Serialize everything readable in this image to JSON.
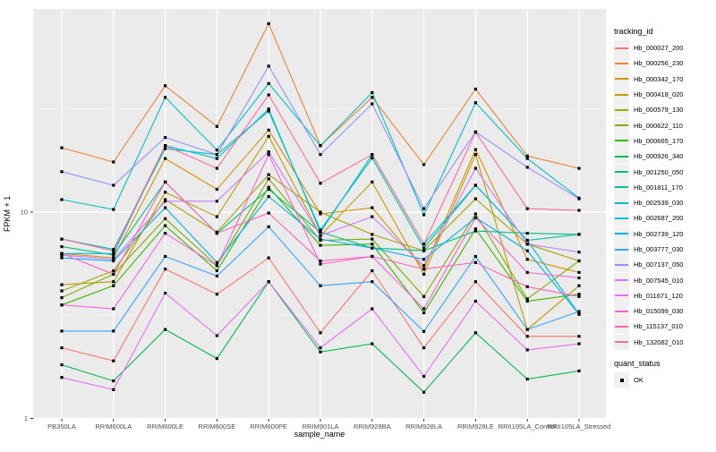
{
  "colors": {
    "panel_bg": "#EBEBEB",
    "grid": "#FFFFFF",
    "tick_text": "#4D4D4D",
    "tick_mark": "#333333",
    "point": "#000000"
  },
  "legend": {
    "tracking_title": "tracking_id",
    "quant_title": "quant_status",
    "quant_ok_label": "OK"
  },
  "chart_data": {
    "type": "line",
    "xlabel": "sample_name",
    "ylabel": "FPKM + 1",
    "y_scale": "log10",
    "ylim": [
      1,
      97
    ],
    "y_ticks": [
      1,
      10
    ],
    "y_tick_labels": [
      "1",
      "10"
    ],
    "y_minor_gridlines": [
      3.162,
      31.62
    ],
    "grid": true,
    "legend_position": "right",
    "point_shape": "square",
    "point_status_label": "OK",
    "categories": [
      "PB350LA",
      "RRIM600LA",
      "RRIM600LE",
      "RRIM600SE",
      "RRIM600PE",
      "RRIM901LA",
      "RRIM928BA",
      "RRIM928LA",
      "RRIM928LE",
      "RRII105LA_Control",
      "RRII105LA_Stressed"
    ],
    "series": [
      {
        "name": "Hb_000027_200",
        "color": "#F8766D",
        "values": [
          2.2,
          1.9,
          5.3,
          4.0,
          6.0,
          2.6,
          5.2,
          2.2,
          4.6,
          2.5,
          2.5
        ]
      },
      {
        "name": "Hb_000256_230",
        "color": "#EA8331",
        "values": [
          20.5,
          17.5,
          41,
          26,
          82,
          21,
          36,
          17,
          39.5,
          18.7,
          16.3
        ]
      },
      {
        "name": "Hb_000342_170",
        "color": "#D89000",
        "values": [
          6.3,
          6.0,
          18.2,
          12.9,
          25,
          9.8,
          10.5,
          5.3,
          20.1,
          5.9,
          5.1
        ]
      },
      {
        "name": "Hb_000418_020",
        "color": "#C09B00",
        "values": [
          4.45,
          4.6,
          12.5,
          9.5,
          23.3,
          7.7,
          14,
          5.0,
          19,
          2.7,
          4.4
        ]
      },
      {
        "name": "Hb_000579_130",
        "color": "#A3A500",
        "values": [
          4.15,
          5.2,
          11.5,
          8.0,
          15.2,
          10,
          7.8,
          6.5,
          11.6,
          7.0,
          5.8
        ]
      },
      {
        "name": "Hb_000622_110",
        "color": "#7CAE00",
        "values": [
          3.85,
          5.0,
          9.3,
          5.5,
          14.5,
          7.3,
          7.4,
          3.9,
          9.8,
          3.8,
          5.8
        ]
      },
      {
        "name": "Hb_000665_170",
        "color": "#39B600",
        "values": [
          3.55,
          4.4,
          8.6,
          5.2,
          13.2,
          6.9,
          7.0,
          3.25,
          8.3,
          3.7,
          4.0
        ]
      },
      {
        "name": "Hb_000926_340",
        "color": "#00BB4E",
        "values": [
          1.82,
          1.52,
          2.7,
          1.95,
          4.6,
          2.1,
          2.3,
          1.34,
          2.6,
          1.55,
          1.7
        ]
      },
      {
        "name": "Hb_001250_050",
        "color": "#00BF7D",
        "values": [
          6.8,
          6.2,
          14,
          7.9,
          12.9,
          8.0,
          6.7,
          6.5,
          8.1,
          7.9,
          7.8
        ]
      },
      {
        "name": "Hb_001811_170",
        "color": "#00C1A3",
        "values": [
          7.4,
          6.6,
          20.3,
          19.0,
          30.9,
          8.2,
          18.3,
          6.7,
          13.5,
          7.3,
          7.8
        ]
      },
      {
        "name": "Hb_002539_030",
        "color": "#00BFC4",
        "values": [
          11.5,
          10.3,
          36,
          20,
          42,
          21,
          38,
          9.7,
          33.9,
          18.2,
          11.7
        ]
      },
      {
        "name": "Hb_002687_200",
        "color": "#00BAE0",
        "values": [
          6.3,
          6.3,
          21,
          18.2,
          31.6,
          8.0,
          19.0,
          7.0,
          13.5,
          7.3,
          3.2
        ]
      },
      {
        "name": "Hb_002739_120",
        "color": "#00B0F6",
        "values": [
          6.0,
          5.8,
          10.5,
          5.7,
          11.9,
          7.4,
          6.7,
          5.9,
          9.4,
          6.5,
          3.2
        ]
      },
      {
        "name": "Hb_003777_030",
        "color": "#35A2FF",
        "values": [
          2.65,
          2.65,
          6.1,
          4.9,
          8.5,
          4.4,
          4.6,
          2.64,
          6.1,
          2.7,
          3.3
        ]
      },
      {
        "name": "Hb_007137_050",
        "color": "#9590FF",
        "values": [
          15.7,
          13.5,
          23,
          19,
          51,
          19,
          33.5,
          10.4,
          24.5,
          16.5,
          11.6
        ]
      },
      {
        "name": "Hb_007545_010",
        "color": "#C77CFF",
        "values": [
          6.2,
          5.9,
          11.3,
          11.3,
          19.6,
          7.7,
          9.5,
          5.5,
          16.3,
          7.0,
          6.4
        ]
      },
      {
        "name": "Hb_011671_120",
        "color": "#E76BF3",
        "values": [
          1.58,
          1.38,
          4.05,
          2.52,
          4.6,
          2.2,
          3.4,
          1.6,
          3.7,
          2.15,
          2.3
        ]
      },
      {
        "name": "Hb_015099_030",
        "color": "#FA62DB",
        "values": [
          3.55,
          3.4,
          7.9,
          5.5,
          19.0,
          5.6,
          6.1,
          3.4,
          9.4,
          5.1,
          4.8
        ]
      },
      {
        "name": "Hb_115137_010",
        "color": "#FF62BC",
        "values": [
          6.3,
          5.0,
          14.0,
          7.9,
          9.9,
          5.8,
          6.1,
          5.3,
          5.7,
          4.35,
          3.9
        ]
      },
      {
        "name": "Hb_132082_010",
        "color": "#FF6A98",
        "values": [
          7.4,
          6.5,
          21,
          16.3,
          37,
          13.8,
          19,
          7.0,
          24.4,
          10.4,
          10.2
        ]
      }
    ]
  }
}
